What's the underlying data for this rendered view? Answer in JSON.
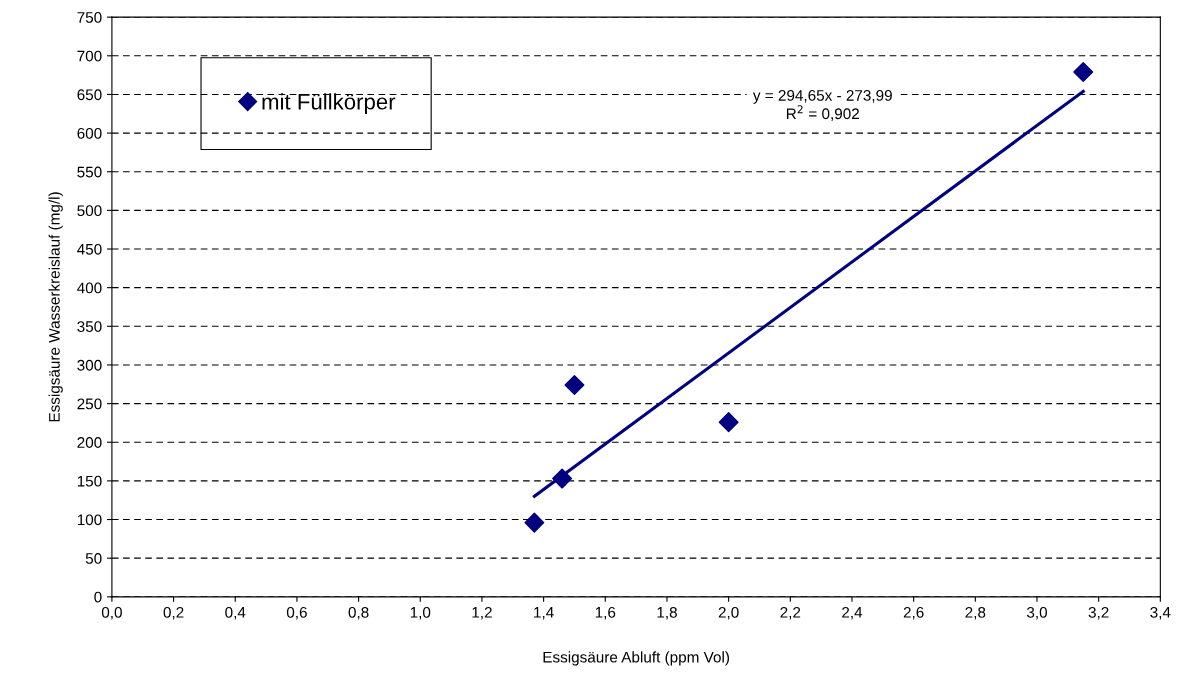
{
  "chart_data": {
    "type": "scatter",
    "xlabel": "Essigsäure Abluft (ppm Vol)",
    "ylabel": "Essigsäure Wasserkreislauf (mg/l)",
    "series": [
      {
        "name": "mit Füllkörper",
        "marker": "diamond",
        "color": "#000080",
        "x": [
          1.37,
          1.46,
          1.5,
          2.0,
          3.15
        ],
        "values": [
          96,
          153,
          274,
          226,
          679
        ]
      },
      {
        "type": "line",
        "color": "#000080",
        "x": [
          1.37,
          3.15
        ],
        "values": [
          130,
          654
        ]
      }
    ],
    "xlim": [
      0,
      3.4
    ],
    "xticks": [
      {
        "value": 0,
        "label": "0,0"
      },
      {
        "value": 0.2,
        "label": "0,2"
      },
      {
        "value": 0.4,
        "label": "0,4"
      },
      {
        "value": 0.6,
        "label": "0,6"
      },
      {
        "value": 0.8,
        "label": "0,8"
      },
      {
        "value": 1.0,
        "label": "1,0"
      },
      {
        "value": 1.2,
        "label": "1,2"
      },
      {
        "value": 1.4,
        "label": "1,4"
      },
      {
        "value": 1.6,
        "label": "1,6"
      },
      {
        "value": 1.8,
        "label": "1,8"
      },
      {
        "value": 2.0,
        "label": "2,0"
      },
      {
        "value": 2.2,
        "label": "2,2"
      },
      {
        "value": 2.4,
        "label": "2,4"
      },
      {
        "value": 2.6,
        "label": "2,6"
      },
      {
        "value": 2.8,
        "label": "2,8"
      },
      {
        "value": 3.0,
        "label": "3,0"
      },
      {
        "value": 3.2,
        "label": "3,2"
      },
      {
        "value": 3.4,
        "label": "3,4"
      }
    ],
    "ylim": [
      0,
      750
    ],
    "yticks": [
      0,
      50,
      100,
      150,
      200,
      250,
      300,
      350,
      400,
      450,
      500,
      550,
      600,
      650,
      700,
      750
    ],
    "annotations": [
      "y = 294,65x - 273,99\nR$^{2}$ = 0,902"
    ],
    "grid": "y",
    "legend": "top left",
    "line_style": "solid"
  }
}
